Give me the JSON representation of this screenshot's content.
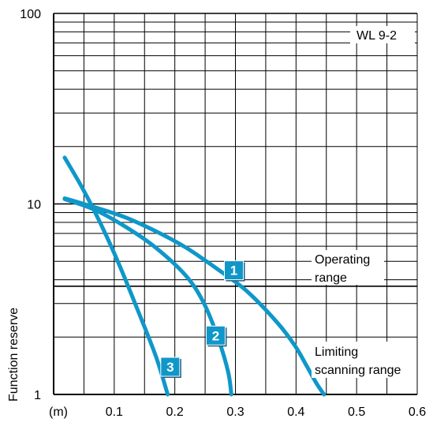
{
  "chart_data": {
    "type": "line",
    "title": "",
    "xlabel": "",
    "ylabel": "Function reserve",
    "x_unit_label": "(m)",
    "x_scale": "linear",
    "y_scale": "log",
    "xlim": [
      0,
      0.6
    ],
    "ylim": [
      1,
      100
    ],
    "grid": true,
    "x_ticks": [
      "0.1",
      "0.2",
      "0.3",
      "0.4",
      "0.5",
      "0.6"
    ],
    "y_ticks": [
      "1",
      "10",
      "100"
    ],
    "model_label": "WL 9-2",
    "reference_line": {
      "y": 3.7
    },
    "annotations": {
      "operating_line1": "Operating",
      "operating_line2": "range",
      "limiting_line1": "Limiting",
      "limiting_line2": "scanning range"
    },
    "series_color": "#0f97c9",
    "series": [
      {
        "label": "1",
        "x": [
          0.0,
          0.05,
          0.1,
          0.15,
          0.2,
          0.25,
          0.3,
          0.35,
          0.38,
          0.4,
          0.415,
          0.428
        ],
        "y": [
          10.7,
          9.6,
          8.5,
          7.2,
          5.9,
          4.6,
          3.5,
          2.4,
          1.8,
          1.4,
          1.15,
          1.0
        ]
      },
      {
        "label": "2",
        "x": [
          0.0,
          0.05,
          0.1,
          0.15,
          0.2,
          0.23,
          0.255,
          0.27,
          0.275
        ],
        "y": [
          10.6,
          9.3,
          7.6,
          5.9,
          4.2,
          3.0,
          1.9,
          1.3,
          1.0
        ]
      },
      {
        "label": "3",
        "x": [
          0.0,
          0.03,
          0.06,
          0.09,
          0.12,
          0.15,
          0.17
        ],
        "y": [
          17.5,
          12.0,
          7.8,
          4.8,
          2.8,
          1.6,
          1.0
        ]
      }
    ]
  }
}
